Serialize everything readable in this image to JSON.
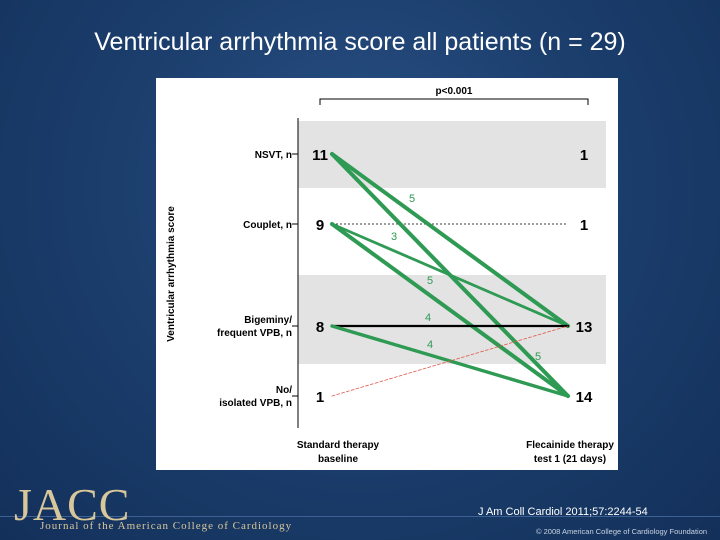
{
  "slide": {
    "title": "Ventricular arrhythmia score all patients (n = 29)",
    "citation": "J Am Coll Cardiol 2011;57:2244-54",
    "journal_logo": "JACC",
    "journal_name": "Journal of the American College of Cardiology",
    "copyright": "© 2008 American College of Cardiology Foundation"
  },
  "chart_data": {
    "type": "line",
    "title": "",
    "ylabel": "Ventricular arrhythmia score",
    "significance": "p<0.001",
    "x": [
      "Standard therapy baseline",
      "Flecainide therapy test 1 (21 days)"
    ],
    "x_labels": [
      [
        "Standard therapy",
        "baseline"
      ],
      [
        "Flecainide therapy",
        "test 1 (21 days)"
      ]
    ],
    "categories": [
      {
        "label": [
          "NSVT, n"
        ],
        "baseline_n": "11",
        "flecainide_n": "1"
      },
      {
        "label": [
          "Couplet, n"
        ],
        "baseline_n": "9",
        "flecainide_n": "1"
      },
      {
        "label": [
          "Bigeminy/",
          "frequent VPB, n"
        ],
        "baseline_n": "8",
        "flecainide_n": "13"
      },
      {
        "label": [
          "No/",
          "isolated VPB, n"
        ],
        "baseline_n": "1",
        "flecainide_n": "14"
      }
    ],
    "transitions": [
      {
        "from": 0,
        "to": 0,
        "n": 1
      },
      {
        "from": 0,
        "to": 2,
        "n": 5
      },
      {
        "from": 0,
        "to": 3,
        "n": 5
      },
      {
        "from": 1,
        "to": 1,
        "n": 1
      },
      {
        "from": 1,
        "to": 2,
        "n": 3
      },
      {
        "from": 1,
        "to": 3,
        "n": 5
      },
      {
        "from": 2,
        "to": 2,
        "n": 4
      },
      {
        "from": 2,
        "to": 3,
        "n": 4
      },
      {
        "from": 3,
        "to": 2,
        "n": 1
      }
    ],
    "transition_labels": [
      {
        "text": "5",
        "near": "nsvt-to-no"
      },
      {
        "text": "3",
        "near": "couplet-to-bigeminy"
      },
      {
        "text": "5",
        "near": "couplet-to-no"
      },
      {
        "text": "4",
        "near": "bigeminy-to-bigeminy"
      },
      {
        "text": "4",
        "near": "bigeminy-to-no"
      },
      {
        "text": "5",
        "near": "nsvt-to-bigeminy"
      }
    ],
    "colors": {
      "worsened": "#e05a4a",
      "improved": "#2e9a53",
      "unchanged": "#000000",
      "band": "#e3e3e3"
    }
  }
}
